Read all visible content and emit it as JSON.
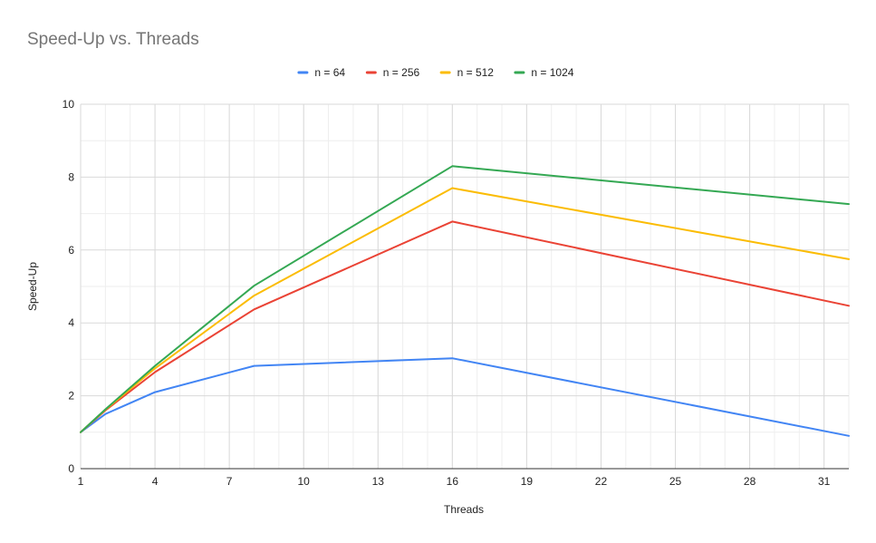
{
  "chart_data": {
    "type": "line",
    "title": "Speed-Up vs. Threads",
    "xlabel": "Threads",
    "ylabel": "Speed-Up",
    "xlim": [
      1,
      32
    ],
    "ylim": [
      0,
      10
    ],
    "x_ticks": [
      1,
      4,
      7,
      10,
      13,
      16,
      19,
      22,
      25,
      28,
      31
    ],
    "y_ticks": [
      0,
      2,
      4,
      6,
      8,
      10
    ],
    "grid": true,
    "legend_position": "top-center",
    "x": [
      1,
      2,
      4,
      8,
      16,
      32
    ],
    "series": [
      {
        "name": "n = 64",
        "color": "#4285f4",
        "values": [
          1.0,
          1.5,
          2.1,
          2.82,
          3.03,
          0.9
        ]
      },
      {
        "name": "n = 256",
        "color": "#ea4335",
        "values": [
          1.0,
          1.6,
          2.65,
          4.37,
          6.78,
          4.47
        ]
      },
      {
        "name": "n = 512",
        "color": "#fbbc04",
        "values": [
          1.0,
          1.62,
          2.75,
          4.75,
          7.7,
          5.75
        ]
      },
      {
        "name": "n = 1024",
        "color": "#34a853",
        "values": [
          1.0,
          1.63,
          2.82,
          5.02,
          8.3,
          7.26
        ]
      }
    ]
  }
}
